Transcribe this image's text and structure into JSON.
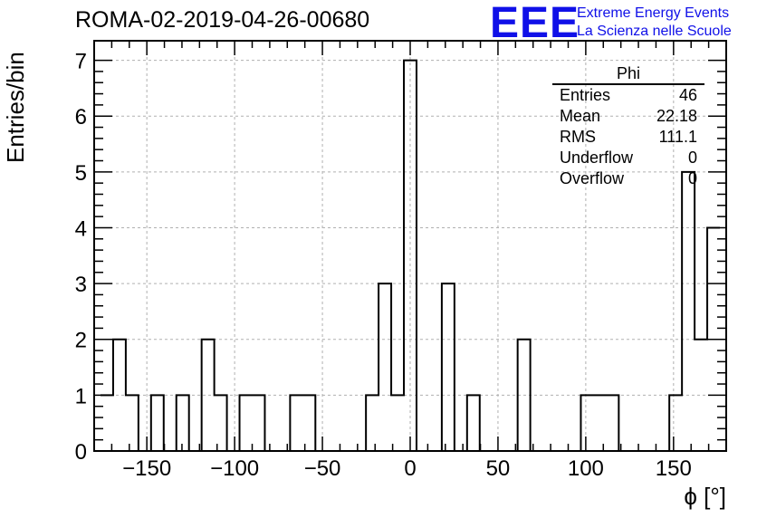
{
  "header": {
    "title": "ROMA-02-2019-04-26-00680",
    "logo_text": "EEE",
    "logo_line1": "Extreme Energy Events",
    "logo_line2": "La Scienza nelle Scuole",
    "logo_color": "#1010e8"
  },
  "stats_box": {
    "title": "Phi",
    "rows": [
      {
        "label": "Entries",
        "value": "46"
      },
      {
        "label": "Mean",
        "value": "22.18"
      },
      {
        "label": "RMS",
        "value": "111.1"
      },
      {
        "label": "Underflow",
        "value": "0"
      },
      {
        "label": "Overflow",
        "value": "0"
      }
    ]
  },
  "chart_data": {
    "type": "bar",
    "style": "step-histogram",
    "xlabel": "ϕ [°]",
    "ylabel": "Entries/bin",
    "xlim": [
      -180,
      180
    ],
    "ylim": [
      0,
      7.35
    ],
    "bin_width": 7.2,
    "x_ticks": [
      -150,
      -100,
      -50,
      0,
      50,
      100,
      150
    ],
    "y_ticks": [
      0,
      1,
      2,
      3,
      4,
      5,
      6,
      7
    ],
    "grid": true,
    "line_color": "#000000",
    "bins": [
      {
        "x": -172.8,
        "value": 1
      },
      {
        "x": -165.6,
        "value": 2
      },
      {
        "x": -158.4,
        "value": 1
      },
      {
        "x": -151.2,
        "value": 0
      },
      {
        "x": -144.0,
        "value": 1
      },
      {
        "x": -136.8,
        "value": 0
      },
      {
        "x": -129.6,
        "value": 1
      },
      {
        "x": -122.4,
        "value": 0
      },
      {
        "x": -115.2,
        "value": 2
      },
      {
        "x": -108.0,
        "value": 1
      },
      {
        "x": -100.8,
        "value": 0
      },
      {
        "x": -93.6,
        "value": 1
      },
      {
        "x": -86.4,
        "value": 1
      },
      {
        "x": -79.2,
        "value": 0
      },
      {
        "x": -72.0,
        "value": 0
      },
      {
        "x": -64.8,
        "value": 1
      },
      {
        "x": -57.6,
        "value": 1
      },
      {
        "x": -50.4,
        "value": 0
      },
      {
        "x": -43.2,
        "value": 0
      },
      {
        "x": -36.0,
        "value": 0
      },
      {
        "x": -28.8,
        "value": 0
      },
      {
        "x": -21.6,
        "value": 1
      },
      {
        "x": -14.4,
        "value": 3
      },
      {
        "x": -7.2,
        "value": 1
      },
      {
        "x": 0.0,
        "value": 7
      },
      {
        "x": 7.2,
        "value": 0
      },
      {
        "x": 14.4,
        "value": 0
      },
      {
        "x": 21.6,
        "value": 3
      },
      {
        "x": 28.8,
        "value": 0
      },
      {
        "x": 36.0,
        "value": 1
      },
      {
        "x": 43.2,
        "value": 0
      },
      {
        "x": 50.4,
        "value": 0
      },
      {
        "x": 57.6,
        "value": 0
      },
      {
        "x": 64.8,
        "value": 2
      },
      {
        "x": 72.0,
        "value": 0
      },
      {
        "x": 79.2,
        "value": 0
      },
      {
        "x": 86.4,
        "value": 0
      },
      {
        "x": 93.6,
        "value": 0
      },
      {
        "x": 100.8,
        "value": 1
      },
      {
        "x": 108.0,
        "value": 1
      },
      {
        "x": 115.2,
        "value": 1
      },
      {
        "x": 122.4,
        "value": 0
      },
      {
        "x": 129.6,
        "value": 0
      },
      {
        "x": 136.8,
        "value": 0
      },
      {
        "x": 144.0,
        "value": 0
      },
      {
        "x": 151.2,
        "value": 1
      },
      {
        "x": 158.4,
        "value": 5
      },
      {
        "x": 165.6,
        "value": 2
      },
      {
        "x": 172.8,
        "value": 4
      }
    ]
  }
}
